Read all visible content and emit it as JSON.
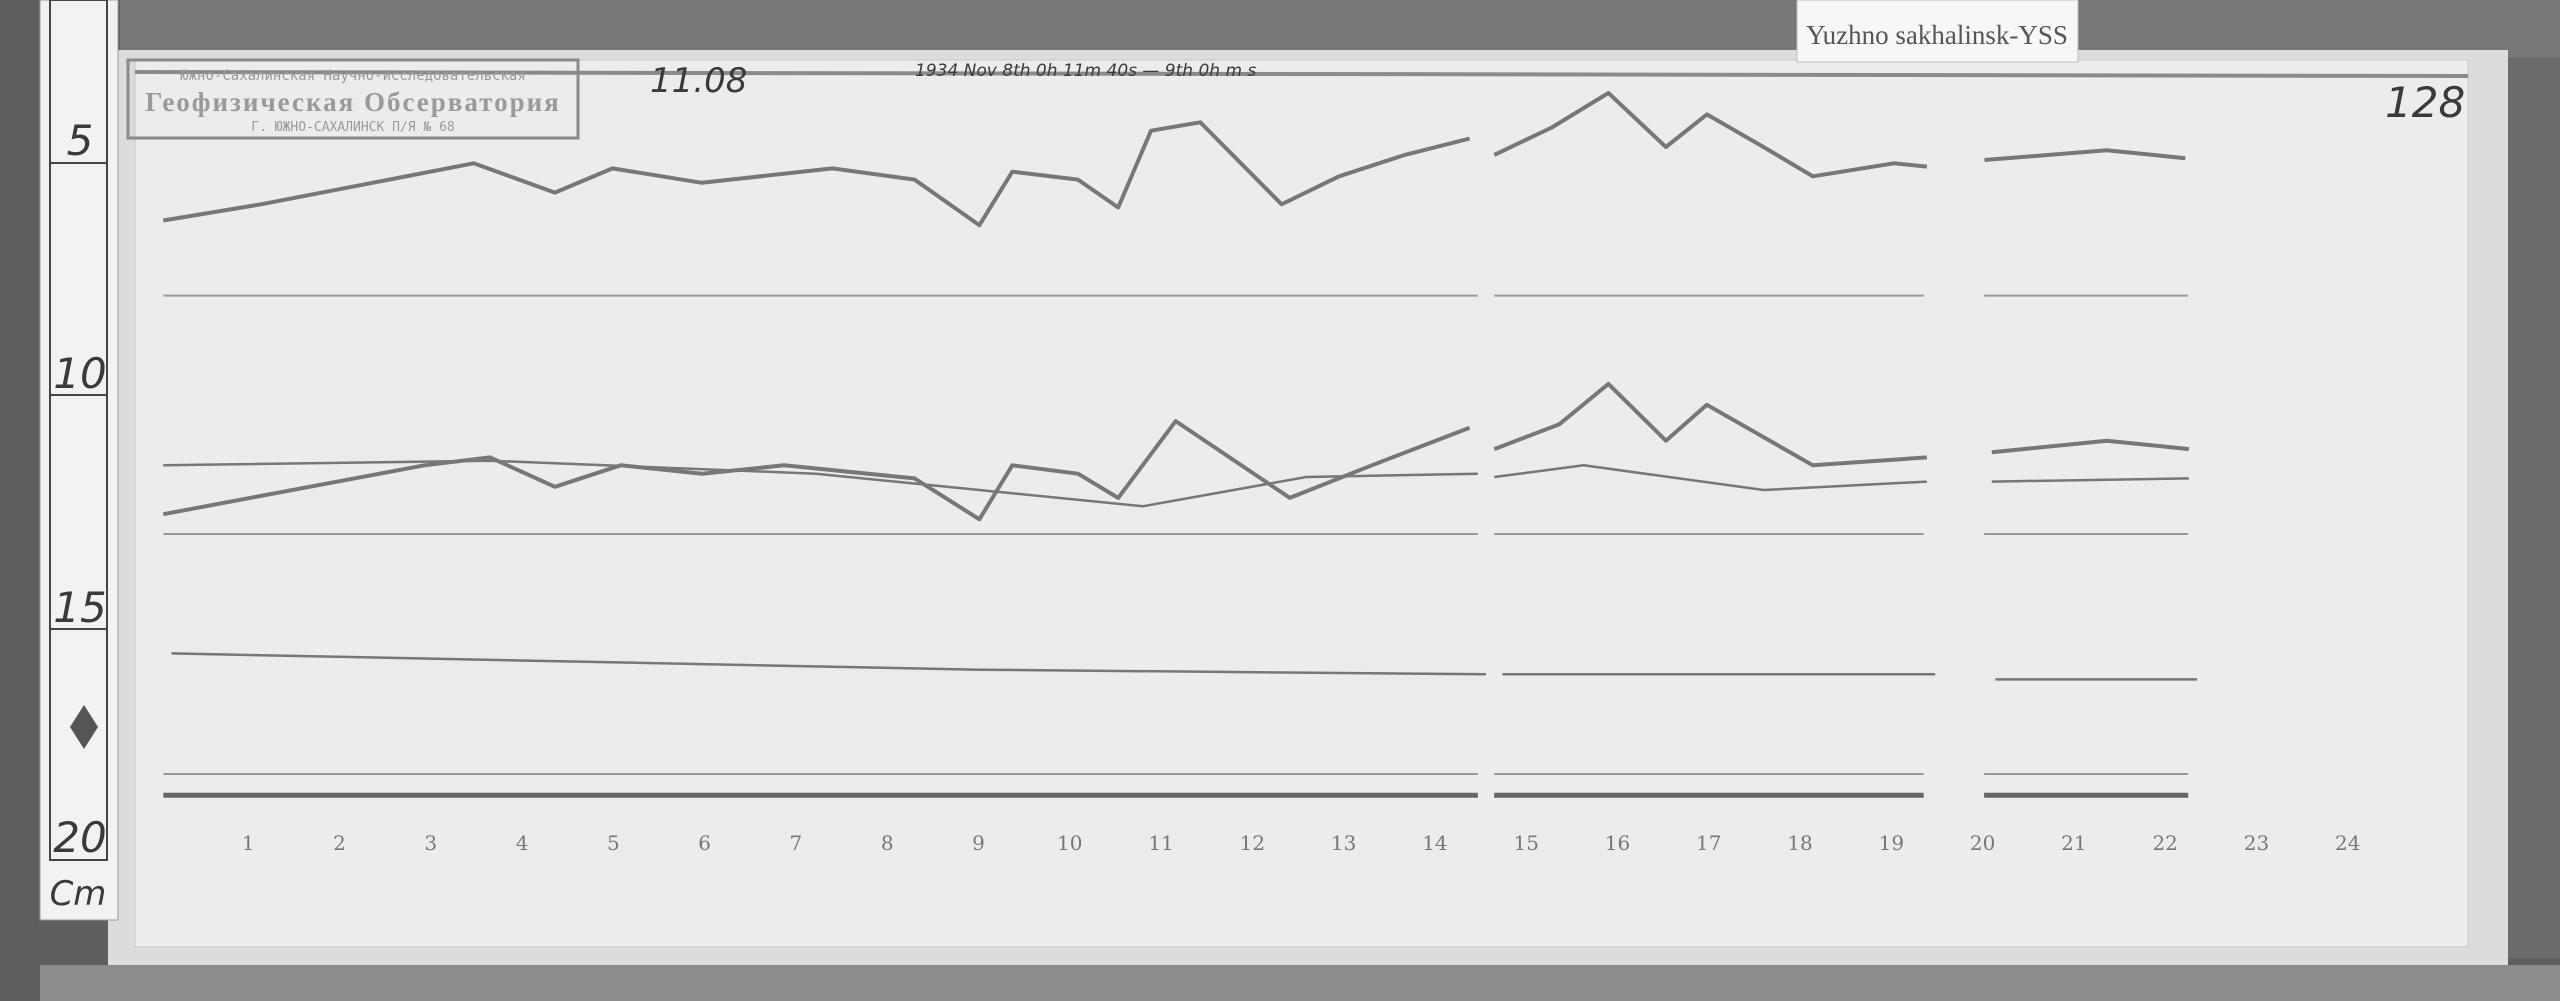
{
  "label_card": "Yuzhno sakhalinsk-YSS",
  "stamp": {
    "line1": "Южно-Сахалинская Научно-исследовательская",
    "line2": "Геофизическая Обсерватория",
    "line3": "Г. ЮЖНО-САХАЛИНСК П/Я № 68"
  },
  "handwritten": {
    "date_code": "11.08",
    "sheet_number": "128",
    "record_period": "1934 Nov 8th 0h 11m 40s — 9th 0h   m   s"
  },
  "ruler": {
    "ticks": [
      "5",
      "10",
      "15",
      "20"
    ],
    "unit": "Cm"
  },
  "colors": {
    "trace": "#777777",
    "paper": "#ececec",
    "board": "#646464"
  },
  "chart_data": {
    "type": "line",
    "x_unit": "hour",
    "y_unit": "cm (ruler scale)",
    "x_ticks": [
      "1",
      "2",
      "3",
      "4",
      "5",
      "6",
      "7",
      "8",
      "9",
      "10",
      "11",
      "12",
      "13",
      "14",
      "15",
      "16",
      "17",
      "18",
      "19",
      "20",
      "21",
      "22",
      "23",
      "24"
    ],
    "xlim": [
      0,
      24
    ],
    "ylim": [
      3,
      21
    ],
    "grid": false,
    "series": [
      {
        "segments": [
          [
            [
              0.07,
              6.23
            ],
            [
              1.14,
              5.88
            ],
            [
              3.47,
              5.0
            ],
            [
              4.36,
              5.63
            ],
            [
              4.99,
              5.11
            ],
            [
              5.97,
              5.42
            ],
            [
              7.4,
              5.11
            ],
            [
              8.3,
              5.35
            ],
            [
              9.01,
              6.33
            ],
            [
              9.37,
              5.18
            ],
            [
              10.09,
              5.35
            ],
            [
              10.53,
              5.95
            ],
            [
              10.89,
              4.3
            ],
            [
              11.43,
              4.12
            ],
            [
              12.32,
              5.88
            ],
            [
              12.95,
              5.28
            ],
            [
              13.67,
              4.82
            ],
            [
              14.38,
              4.47
            ]
          ],
          [
            [
              14.65,
              4.82
            ],
            [
              15.28,
              4.23
            ],
            [
              15.9,
              3.49
            ],
            [
              16.53,
              4.65
            ],
            [
              16.98,
              3.95
            ],
            [
              17.6,
              4.65
            ],
            [
              18.14,
              5.28
            ],
            [
              19.03,
              5.0
            ],
            [
              19.39,
              5.07
            ]
          ],
          [
            [
              20.02,
              4.93
            ],
            [
              21.36,
              4.72
            ],
            [
              22.22,
              4.89
            ]
          ]
        ]
      },
      {
        "segments": [
          [
            [
              0.07,
              12.54
            ],
            [
              2.93,
              11.49
            ],
            [
              3.65,
              11.32
            ],
            [
              4.36,
              11.95
            ],
            [
              5.08,
              11.49
            ],
            [
              5.97,
              11.67
            ],
            [
              6.87,
              11.49
            ],
            [
              8.3,
              11.77
            ],
            [
              9.01,
              12.65
            ],
            [
              9.37,
              11.49
            ],
            [
              10.09,
              11.67
            ],
            [
              10.53,
              12.19
            ],
            [
              11.16,
              10.54
            ],
            [
              12.41,
              12.19
            ],
            [
              13.31,
              11.49
            ],
            [
              14.38,
              10.68
            ]
          ],
          [
            [
              14.65,
              11.14
            ],
            [
              15.36,
              10.61
            ],
            [
              15.9,
              9.74
            ],
            [
              16.53,
              10.96
            ],
            [
              16.98,
              10.19
            ],
            [
              18.14,
              11.49
            ],
            [
              19.39,
              11.32
            ]
          ],
          [
            [
              20.1,
              11.21
            ],
            [
              21.36,
              10.96
            ],
            [
              22.26,
              11.14
            ]
          ]
        ]
      },
      {
        "segments": [
          [
            [
              0.07,
              11.49
            ],
            [
              3.65,
              11.39
            ],
            [
              7.22,
              11.67
            ],
            [
              9.01,
              12.02
            ],
            [
              10.8,
              12.37
            ],
            [
              12.59,
              11.74
            ],
            [
              14.47,
              11.67
            ]
          ],
          [
            [
              14.65,
              11.74
            ],
            [
              15.63,
              11.49
            ],
            [
              17.6,
              12.02
            ],
            [
              19.39,
              11.84
            ]
          ],
          [
            [
              20.1,
              11.84
            ],
            [
              22.26,
              11.77
            ]
          ]
        ]
      },
      {
        "segments": [
          [
            [
              0.16,
              15.53
            ],
            [
              9.01,
              15.88
            ],
            [
              14.56,
              15.98
            ]
          ],
          [
            [
              14.74,
              15.98
            ],
            [
              19.48,
              15.98
            ]
          ],
          [
            [
              20.14,
              16.09
            ],
            [
              22.35,
              16.09
            ]
          ]
        ]
      }
    ]
  }
}
